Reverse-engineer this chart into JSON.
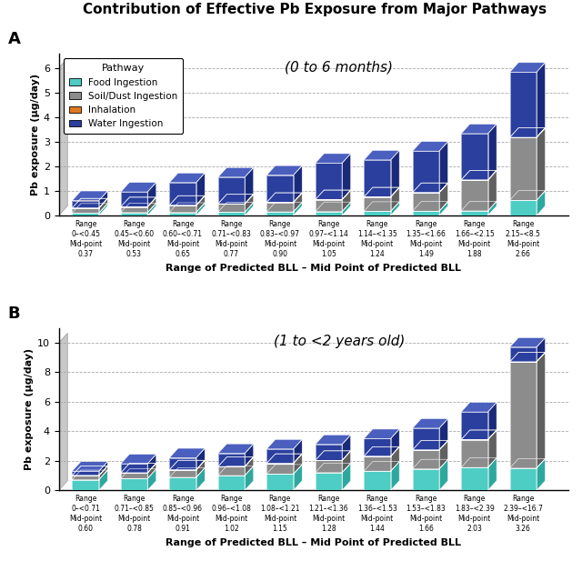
{
  "title": "Contribution of Effective Pb Exposure from Major Pathways",
  "panel_a": {
    "subtitle": "(0 to 6 months)",
    "xlabel": "Range of Predicted BLL – Mid Point of Predicted BLL",
    "ylabel": "Pb exposure (µg/day)",
    "ylim": [
      0,
      6
    ],
    "yticks": [
      0,
      1,
      2,
      3,
      4,
      5,
      6
    ],
    "cat_lines": [
      [
        "Range",
        "0–<0.45",
        "Mid-point",
        "0.37"
      ],
      [
        "Range",
        "0.45–<0.60",
        "Mid-point",
        "0.53"
      ],
      [
        "Range",
        "0.60–<0.71",
        "Mid-point",
        "0.65"
      ],
      [
        "Range",
        "0.71–<0.83",
        "Mid-point",
        "0.77"
      ],
      [
        "Range",
        "0.83–<0.97",
        "Mid-point",
        "0.90"
      ],
      [
        "Range",
        "0.97–<1.14",
        "Mid-point",
        "1.05"
      ],
      [
        "Range",
        "1.14–<1.35",
        "Mid-point",
        "1.24"
      ],
      [
        "Range",
        "1.35–<1.66",
        "Mid-point",
        "1.49"
      ],
      [
        "Range",
        "1.66–<2.15",
        "Mid-point",
        "1.88"
      ],
      [
        "Range",
        "2.15–<8.5",
        "Mid-point",
        "2.66"
      ]
    ],
    "food": [
      0.1,
      0.12,
      0.13,
      0.14,
      0.15,
      0.16,
      0.17,
      0.18,
      0.19,
      0.62
    ],
    "soil": [
      0.2,
      0.23,
      0.28,
      0.33,
      0.38,
      0.48,
      0.58,
      0.75,
      1.25,
      2.55
    ],
    "inhal": [
      0.01,
      0.01,
      0.01,
      0.01,
      0.01,
      0.01,
      0.01,
      0.01,
      0.01,
      0.01
    ],
    "water": [
      0.3,
      0.6,
      0.92,
      1.08,
      1.1,
      1.48,
      1.5,
      1.68,
      1.88,
      2.65
    ]
  },
  "panel_b": {
    "subtitle": "(1 to <2 years old)",
    "xlabel": "Range of Predicted BLL – Mid Point of Predicted BLL",
    "ylabel": "Pb exposure (µg/day)",
    "ylim": [
      0,
      10
    ],
    "yticks": [
      0,
      2,
      4,
      6,
      8,
      10
    ],
    "cat_lines": [
      [
        "Range",
        "0–<0.71",
        "Mid-point",
        "0.60"
      ],
      [
        "Range",
        "0.71–<0.85",
        "Mid-point",
        "0.78"
      ],
      [
        "Range",
        "0.85–<0.96",
        "Mid-point",
        "0.91"
      ],
      [
        "Range",
        "0.96–<1.08",
        "Mid-point",
        "1.02"
      ],
      [
        "Range",
        "1.08–<1.21",
        "Mid-point",
        "1.15"
      ],
      [
        "Range",
        "1.21–<1.36",
        "Mid-point",
        "1.28"
      ],
      [
        "Range",
        "1.36–<1.53",
        "Mid-point",
        "1.44"
      ],
      [
        "Range",
        "1.53–<1.83",
        "Mid-point",
        "1.66"
      ],
      [
        "Range",
        "1.83–<2.39",
        "Mid-point",
        "2.03"
      ],
      [
        "Range",
        "2.39–<16.7",
        "Mid-point",
        "3.26"
      ]
    ],
    "food": [
      0.72,
      0.8,
      0.88,
      1.0,
      1.1,
      1.2,
      1.3,
      1.45,
      1.55,
      1.5
    ],
    "soil": [
      0.28,
      0.38,
      0.5,
      0.6,
      0.72,
      0.82,
      1.0,
      1.28,
      1.88,
      7.2
    ],
    "inhal": [
      0.01,
      0.01,
      0.01,
      0.01,
      0.01,
      0.01,
      0.01,
      0.01,
      0.01,
      0.01
    ],
    "water": [
      0.29,
      0.61,
      0.81,
      0.89,
      0.97,
      1.08,
      1.19,
      1.47,
      1.87,
      0.99
    ]
  },
  "colors": {
    "food_face": "#4ECDC4",
    "food_side": "#2EA89F",
    "food_top": "#80E0DA",
    "soil_face": "#8C8C8C",
    "soil_side": "#606060",
    "soil_top": "#B0B0B0",
    "inhal_face": "#E07820",
    "inhal_side": "#A05010",
    "inhal_top": "#F0A060",
    "water_face": "#2B3F9E",
    "water_side": "#1A2A7A",
    "water_top": "#4A5FBE"
  },
  "legend_labels": [
    "Food Ingestion",
    "Soil/Dust Ingestion",
    "Inhalation",
    "Water Ingestion"
  ],
  "legend_colors": [
    "#4ECDC4",
    "#8C8C8C",
    "#E07820",
    "#2B3F9E"
  ]
}
